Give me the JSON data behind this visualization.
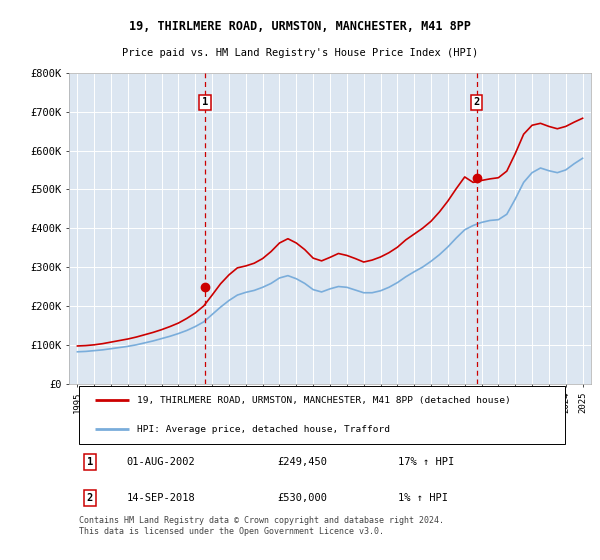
{
  "title": "19, THIRLMERE ROAD, URMSTON, MANCHESTER, M41 8PP",
  "subtitle": "Price paid vs. HM Land Registry's House Price Index (HPI)",
  "ylim": [
    0,
    800000
  ],
  "yticks": [
    0,
    100000,
    200000,
    300000,
    400000,
    500000,
    600000,
    700000,
    800000
  ],
  "ytick_labels": [
    "£0",
    "£100K",
    "£200K",
    "£300K",
    "£400K",
    "£500K",
    "£600K",
    "£700K",
    "£800K"
  ],
  "xlim_start": 1994.5,
  "xlim_end": 2025.5,
  "plot_bg_color": "#dce6f1",
  "line1_color": "#cc0000",
  "line2_color": "#7aaddb",
  "vline1_x": 2002.58,
  "vline2_x": 2018.71,
  "marker1_y": 249450,
  "marker2_y": 530000,
  "legend_line1": "19, THIRLMERE ROAD, URMSTON, MANCHESTER, M41 8PP (detached house)",
  "legend_line2": "HPI: Average price, detached house, Trafford",
  "annot1_num": "1",
  "annot1_date": "01-AUG-2002",
  "annot1_price": "£249,450",
  "annot1_hpi": "17% ↑ HPI",
  "annot2_num": "2",
  "annot2_date": "14-SEP-2018",
  "annot2_price": "£530,000",
  "annot2_hpi": "1% ↑ HPI",
  "copyright": "Contains HM Land Registry data © Crown copyright and database right 2024.\nThis data is licensed under the Open Government Licence v3.0.",
  "hpi_years": [
    1995,
    1995.5,
    1996,
    1996.5,
    1997,
    1997.5,
    1998,
    1998.5,
    1999,
    1999.5,
    2000,
    2000.5,
    2001,
    2001.5,
    2002,
    2002.5,
    2003,
    2003.5,
    2004,
    2004.5,
    2005,
    2005.5,
    2006,
    2006.5,
    2007,
    2007.5,
    2008,
    2008.5,
    2009,
    2009.5,
    2010,
    2010.5,
    2011,
    2011.5,
    2012,
    2012.5,
    2013,
    2013.5,
    2014,
    2014.5,
    2015,
    2015.5,
    2016,
    2016.5,
    2017,
    2017.5,
    2018,
    2018.5,
    2019,
    2019.5,
    2020,
    2020.5,
    2021,
    2021.5,
    2022,
    2022.5,
    2023,
    2023.5,
    2024,
    2024.5,
    2025
  ],
  "hpi_values": [
    82000,
    83000,
    85000,
    87000,
    90000,
    93000,
    96000,
    100000,
    105000,
    110000,
    116000,
    122000,
    129000,
    137000,
    147000,
    159000,
    178000,
    197000,
    214000,
    228000,
    235000,
    240000,
    248000,
    258000,
    272000,
    278000,
    270000,
    258000,
    242000,
    236000,
    244000,
    250000,
    248000,
    241000,
    234000,
    234000,
    239000,
    248000,
    260000,
    275000,
    288000,
    300000,
    315000,
    332000,
    352000,
    375000,
    396000,
    407000,
    415000,
    420000,
    422000,
    436000,
    475000,
    518000,
    543000,
    555000,
    548000,
    543000,
    550000,
    566000,
    580000
  ],
  "price_years": [
    1995,
    1995.5,
    1996,
    1996.5,
    1997,
    1997.5,
    1998,
    1998.5,
    1999,
    1999.5,
    2000,
    2000.5,
    2001,
    2001.5,
    2002,
    2002.5,
    2003,
    2003.5,
    2004,
    2004.5,
    2005,
    2005.5,
    2006,
    2006.5,
    2007,
    2007.5,
    2008,
    2008.5,
    2009,
    2009.5,
    2010,
    2010.5,
    2011,
    2011.5,
    2012,
    2012.5,
    2013,
    2013.5,
    2014,
    2014.5,
    2015,
    2015.5,
    2016,
    2016.5,
    2017,
    2017.5,
    2018,
    2018.5,
    2019,
    2019.5,
    2020,
    2020.5,
    2021,
    2021.5,
    2022,
    2022.5,
    2023,
    2023.5,
    2024,
    2024.5,
    2025
  ],
  "price_values": [
    97000,
    98000,
    100000,
    103000,
    107000,
    111000,
    115000,
    120000,
    126000,
    132000,
    139000,
    147000,
    156000,
    168000,
    182000,
    200000,
    228000,
    257000,
    280000,
    298000,
    303000,
    310000,
    322000,
    340000,
    362000,
    373000,
    362000,
    345000,
    323000,
    316000,
    325000,
    335000,
    330000,
    322000,
    313000,
    318000,
    326000,
    337000,
    351000,
    370000,
    385000,
    400000,
    418000,
    442000,
    470000,
    502000,
    532000,
    518000,
    523000,
    527000,
    530000,
    547000,
    592000,
    642000,
    665000,
    670000,
    662000,
    656000,
    662000,
    673000,
    683000
  ]
}
